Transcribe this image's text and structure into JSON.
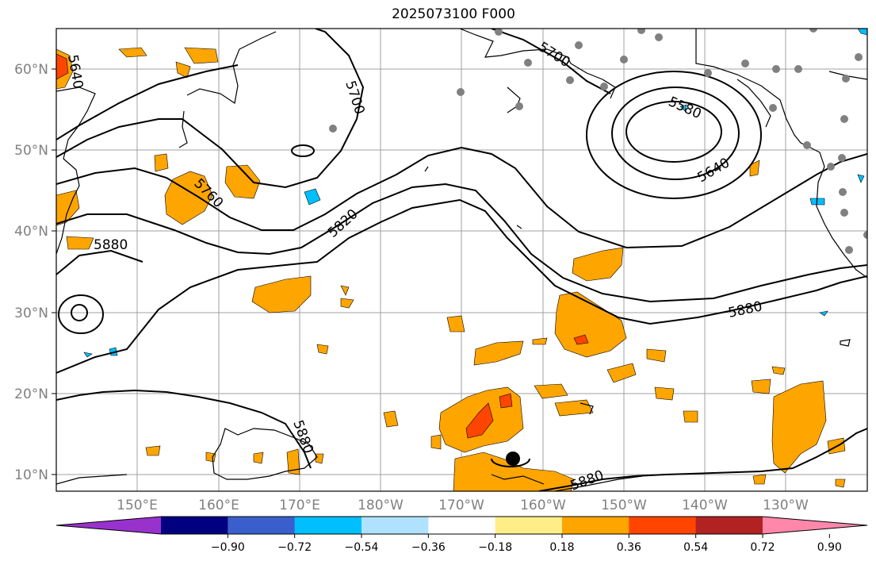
{
  "title": "2025073100 F000",
  "map": {
    "lon_labels": [
      "150°E",
      "160°E",
      "170°E",
      "180°W",
      "170°W",
      "160°W",
      "150°W",
      "140°W",
      "130°W"
    ],
    "lat_labels": [
      "60°N",
      "50°N",
      "40°N",
      "30°N",
      "20°N",
      "10°N"
    ],
    "contour_labels": [
      "5640",
      "5700",
      "5700",
      "5760",
      "5820",
      "5880",
      "5880",
      "5880",
      "5880",
      "5580",
      "5640"
    ],
    "colors": {
      "land": "#000000",
      "grid": "#a0a0a0",
      "orange": "#FFA500",
      "red_orange": "#FF4500",
      "light_yellow": "#FFEE88",
      "cyan": "#00BFFF",
      "station": "#808080"
    }
  },
  "colorbar": {
    "tick_labels": [
      "−0.90",
      "−0.72",
      "−0.54",
      "−0.36",
      "−0.18",
      "0.18",
      "0.36",
      "0.54",
      "0.72",
      "0.90"
    ],
    "colors": [
      "#9932CC",
      "#000080",
      "#3A5FCD",
      "#00BFFF",
      "#B0E2FF",
      "#FFFFFF",
      "#FFEE88",
      "#FFA500",
      "#FF4500",
      "#B22222",
      "#FF88AA"
    ]
  }
}
